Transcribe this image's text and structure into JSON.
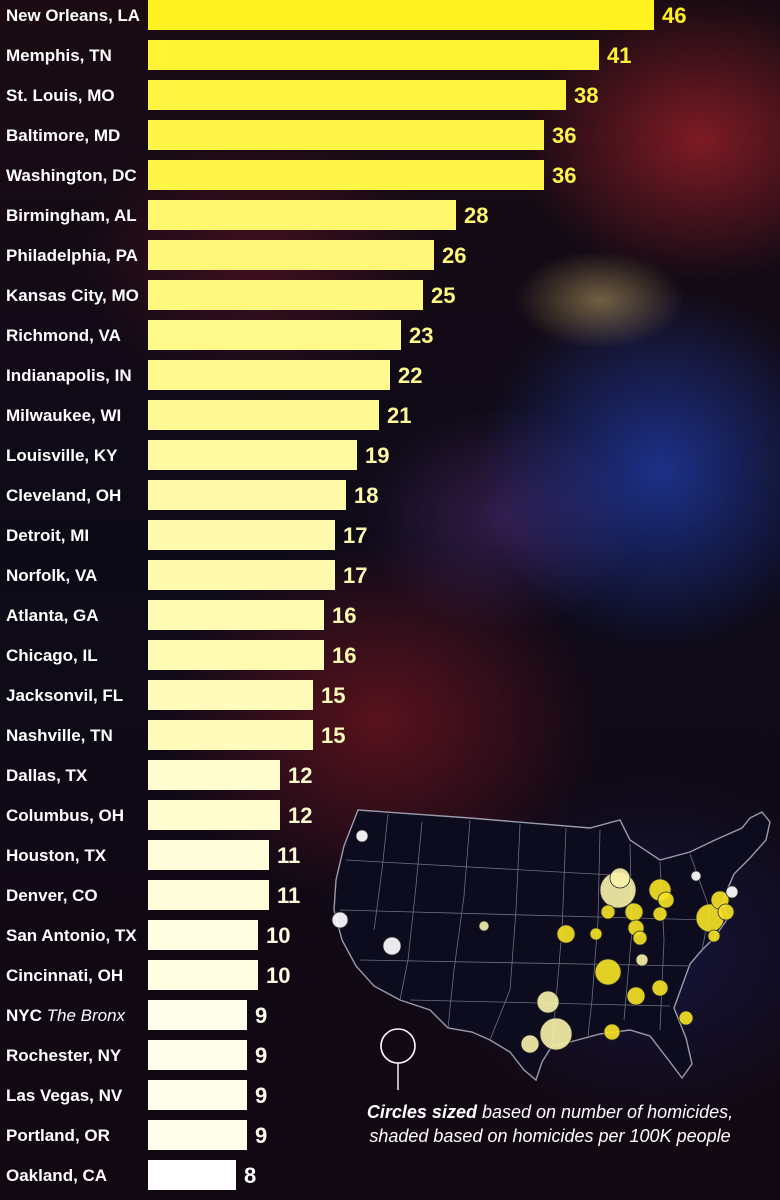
{
  "chart_data": {
    "type": "bar",
    "orientation": "horizontal",
    "categories": [
      "New Orleans, LA",
      "Memphis, TN",
      "St. Louis, MO",
      "Baltimore, MD",
      "Washington, DC",
      "Birmingham, AL",
      "Philadelphia, PA",
      "Kansas City, MO",
      "Richmond, VA",
      "Indianapolis, IN",
      "Milwaukee, WI",
      "Louisville, KY",
      "Cleveland, OH",
      "Detroit, MI",
      "Norfolk, VA",
      "Atlanta, GA",
      "Chicago, IL",
      "Jacksonvil, FL",
      "Nashville, TN",
      "Dallas, TX",
      "Columbus, OH",
      "Houston, TX",
      "Denver, CO",
      "San Antonio, TX",
      "Cincinnati, OH",
      "NYC",
      "Rochester, NY",
      "Las Vegas, NV",
      "Portland, OR",
      "Oakland, CA"
    ],
    "category_notes": {
      "NYC": "The Bronx"
    },
    "values": [
      46,
      41,
      38,
      36,
      36,
      28,
      26,
      25,
      23,
      22,
      21,
      19,
      18,
      17,
      17,
      16,
      16,
      15,
      15,
      12,
      12,
      11,
      11,
      10,
      10,
      9,
      9,
      9,
      9,
      8
    ],
    "xlim": [
      0,
      48
    ],
    "color_scale": {
      "high": "#fff21e",
      "low": "#ffffff"
    },
    "grid": false,
    "legend": "none"
  },
  "inset_map": {
    "caption_bold": "Circles sized",
    "caption_rest_line1": " based on number of homicides,",
    "caption_line2": "shaded based on homicides per 100K people",
    "circle_colors": {
      "high_rate": "#f4e224",
      "mid_rate": "#f5f0a8",
      "low_rate": "#ffffff"
    }
  }
}
